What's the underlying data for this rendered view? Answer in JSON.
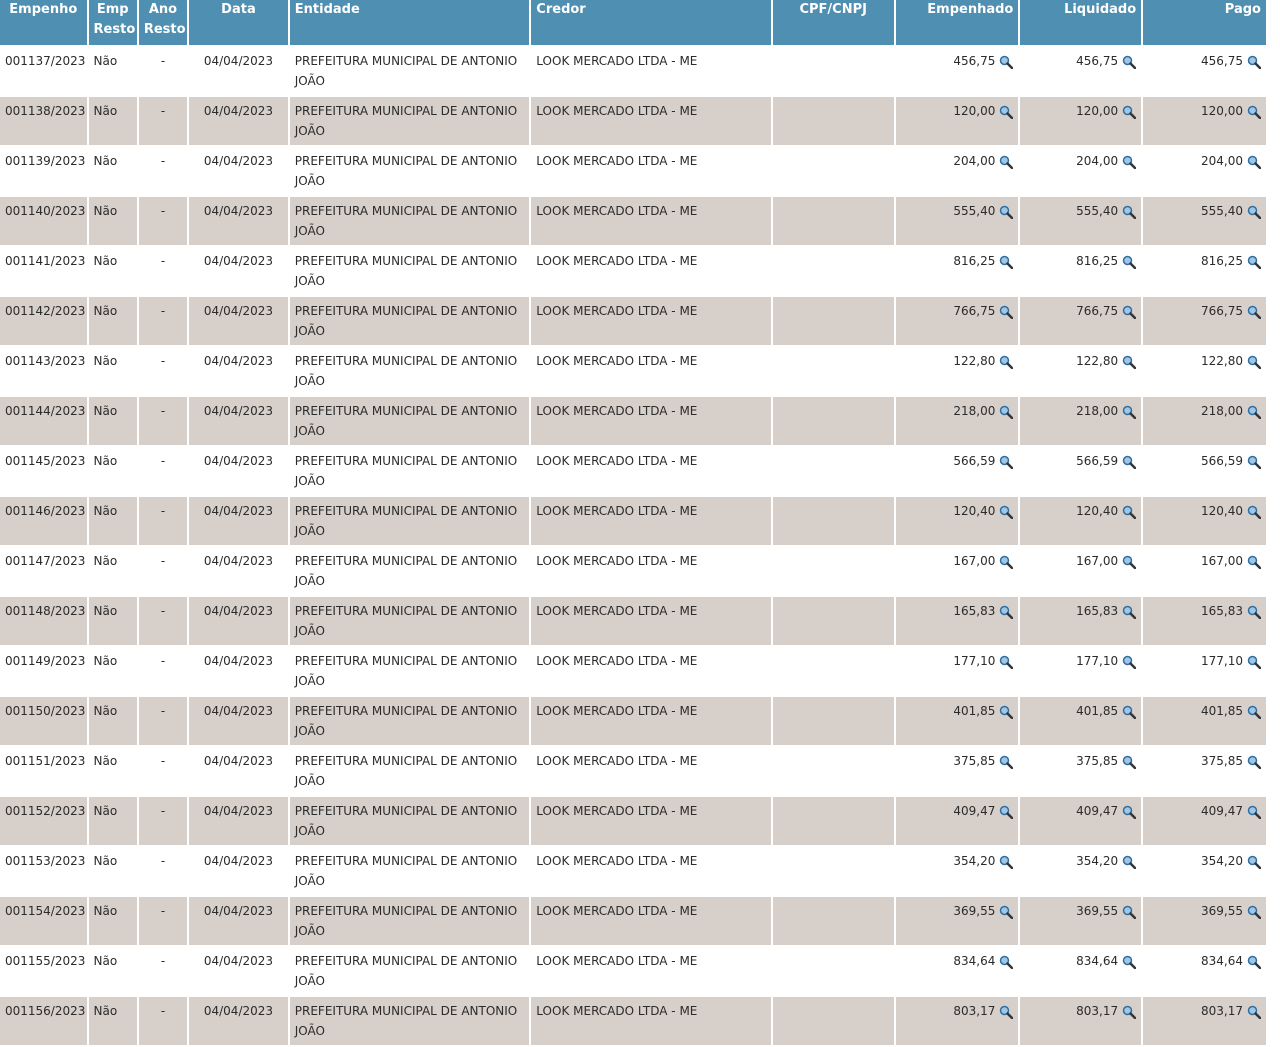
{
  "headers": {
    "empenho": "Empenho",
    "emp_resto": "Emp Resto",
    "ano_resto": "Ano Resto",
    "data": "Data",
    "entidade": "Entidade",
    "credor": "Credor",
    "cpf": "CPF/CNPJ",
    "empenhado": "Empenhado",
    "liquidado": "Liquidado",
    "pago": "Pago"
  },
  "icons": {
    "detail": "magnifier-icon"
  },
  "colors": {
    "header_bg": "#4f8fb2",
    "row_alt": "#d7cfc9"
  },
  "rows": [
    {
      "empenho": "001137/2023",
      "emp_resto": "Não",
      "ano_resto": "-",
      "data": "04/04/2023",
      "entidade": "PREFEITURA MUNICIPAL DE ANTONIO JOÃO",
      "credor": "LOOK MERCADO LTDA - ME",
      "cpf": "",
      "empenhado": "456,75",
      "liquidado": "456,75",
      "pago": "456,75"
    },
    {
      "empenho": "001138/2023",
      "emp_resto": "Não",
      "ano_resto": "-",
      "data": "04/04/2023",
      "entidade": "PREFEITURA MUNICIPAL DE ANTONIO JOÃO",
      "credor": "LOOK MERCADO LTDA - ME",
      "cpf": "",
      "empenhado": "120,00",
      "liquidado": "120,00",
      "pago": "120,00"
    },
    {
      "empenho": "001139/2023",
      "emp_resto": "Não",
      "ano_resto": "-",
      "data": "04/04/2023",
      "entidade": "PREFEITURA MUNICIPAL DE ANTONIO JOÃO",
      "credor": "LOOK MERCADO LTDA - ME",
      "cpf": "",
      "empenhado": "204,00",
      "liquidado": "204,00",
      "pago": "204,00"
    },
    {
      "empenho": "001140/2023",
      "emp_resto": "Não",
      "ano_resto": "-",
      "data": "04/04/2023",
      "entidade": "PREFEITURA MUNICIPAL DE ANTONIO JOÃO",
      "credor": "LOOK MERCADO LTDA - ME",
      "cpf": "",
      "empenhado": "555,40",
      "liquidado": "555,40",
      "pago": "555,40"
    },
    {
      "empenho": "001141/2023",
      "emp_resto": "Não",
      "ano_resto": "-",
      "data": "04/04/2023",
      "entidade": "PREFEITURA MUNICIPAL DE ANTONIO JOÃO",
      "credor": "LOOK MERCADO LTDA - ME",
      "cpf": "",
      "empenhado": "816,25",
      "liquidado": "816,25",
      "pago": "816,25"
    },
    {
      "empenho": "001142/2023",
      "emp_resto": "Não",
      "ano_resto": "-",
      "data": "04/04/2023",
      "entidade": "PREFEITURA MUNICIPAL DE ANTONIO JOÃO",
      "credor": "LOOK MERCADO LTDA - ME",
      "cpf": "",
      "empenhado": "766,75",
      "liquidado": "766,75",
      "pago": "766,75"
    },
    {
      "empenho": "001143/2023",
      "emp_resto": "Não",
      "ano_resto": "-",
      "data": "04/04/2023",
      "entidade": "PREFEITURA MUNICIPAL DE ANTONIO JOÃO",
      "credor": "LOOK MERCADO LTDA - ME",
      "cpf": "",
      "empenhado": "122,80",
      "liquidado": "122,80",
      "pago": "122,80"
    },
    {
      "empenho": "001144/2023",
      "emp_resto": "Não",
      "ano_resto": "-",
      "data": "04/04/2023",
      "entidade": "PREFEITURA MUNICIPAL DE ANTONIO JOÃO",
      "credor": "LOOK MERCADO LTDA - ME",
      "cpf": "",
      "empenhado": "218,00",
      "liquidado": "218,00",
      "pago": "218,00"
    },
    {
      "empenho": "001145/2023",
      "emp_resto": "Não",
      "ano_resto": "-",
      "data": "04/04/2023",
      "entidade": "PREFEITURA MUNICIPAL DE ANTONIO JOÃO",
      "credor": "LOOK MERCADO LTDA - ME",
      "cpf": "",
      "empenhado": "566,59",
      "liquidado": "566,59",
      "pago": "566,59"
    },
    {
      "empenho": "001146/2023",
      "emp_resto": "Não",
      "ano_resto": "-",
      "data": "04/04/2023",
      "entidade": "PREFEITURA MUNICIPAL DE ANTONIO JOÃO",
      "credor": "LOOK MERCADO LTDA - ME",
      "cpf": "",
      "empenhado": "120,40",
      "liquidado": "120,40",
      "pago": "120,40"
    },
    {
      "empenho": "001147/2023",
      "emp_resto": "Não",
      "ano_resto": "-",
      "data": "04/04/2023",
      "entidade": "PREFEITURA MUNICIPAL DE ANTONIO JOÃO",
      "credor": "LOOK MERCADO LTDA - ME",
      "cpf": "",
      "empenhado": "167,00",
      "liquidado": "167,00",
      "pago": "167,00"
    },
    {
      "empenho": "001148/2023",
      "emp_resto": "Não",
      "ano_resto": "-",
      "data": "04/04/2023",
      "entidade": "PREFEITURA MUNICIPAL DE ANTONIO JOÃO",
      "credor": "LOOK MERCADO LTDA - ME",
      "cpf": "",
      "empenhado": "165,83",
      "liquidado": "165,83",
      "pago": "165,83"
    },
    {
      "empenho": "001149/2023",
      "emp_resto": "Não",
      "ano_resto": "-",
      "data": "04/04/2023",
      "entidade": "PREFEITURA MUNICIPAL DE ANTONIO JOÃO",
      "credor": "LOOK MERCADO LTDA - ME",
      "cpf": "",
      "empenhado": "177,10",
      "liquidado": "177,10",
      "pago": "177,10"
    },
    {
      "empenho": "001150/2023",
      "emp_resto": "Não",
      "ano_resto": "-",
      "data": "04/04/2023",
      "entidade": "PREFEITURA MUNICIPAL DE ANTONIO JOÃO",
      "credor": "LOOK MERCADO LTDA - ME",
      "cpf": "",
      "empenhado": "401,85",
      "liquidado": "401,85",
      "pago": "401,85"
    },
    {
      "empenho": "001151/2023",
      "emp_resto": "Não",
      "ano_resto": "-",
      "data": "04/04/2023",
      "entidade": "PREFEITURA MUNICIPAL DE ANTONIO JOÃO",
      "credor": "LOOK MERCADO LTDA - ME",
      "cpf": "",
      "empenhado": "375,85",
      "liquidado": "375,85",
      "pago": "375,85"
    },
    {
      "empenho": "001152/2023",
      "emp_resto": "Não",
      "ano_resto": "-",
      "data": "04/04/2023",
      "entidade": "PREFEITURA MUNICIPAL DE ANTONIO JOÃO",
      "credor": "LOOK MERCADO LTDA - ME",
      "cpf": "",
      "empenhado": "409,47",
      "liquidado": "409,47",
      "pago": "409,47"
    },
    {
      "empenho": "001153/2023",
      "emp_resto": "Não",
      "ano_resto": "-",
      "data": "04/04/2023",
      "entidade": "PREFEITURA MUNICIPAL DE ANTONIO JOÃO",
      "credor": "LOOK MERCADO LTDA - ME",
      "cpf": "",
      "empenhado": "354,20",
      "liquidado": "354,20",
      "pago": "354,20"
    },
    {
      "empenho": "001154/2023",
      "emp_resto": "Não",
      "ano_resto": "-",
      "data": "04/04/2023",
      "entidade": "PREFEITURA MUNICIPAL DE ANTONIO JOÃO",
      "credor": "LOOK MERCADO LTDA - ME",
      "cpf": "",
      "empenhado": "369,55",
      "liquidado": "369,55",
      "pago": "369,55"
    },
    {
      "empenho": "001155/2023",
      "emp_resto": "Não",
      "ano_resto": "-",
      "data": "04/04/2023",
      "entidade": "PREFEITURA MUNICIPAL DE ANTONIO JOÃO",
      "credor": "LOOK MERCADO LTDA - ME",
      "cpf": "",
      "empenhado": "834,64",
      "liquidado": "834,64",
      "pago": "834,64"
    },
    {
      "empenho": "001156/2023",
      "emp_resto": "Não",
      "ano_resto": "-",
      "data": "04/04/2023",
      "entidade": "PREFEITURA MUNICIPAL DE ANTONIO JOÃO",
      "credor": "LOOK MERCADO LTDA - ME",
      "cpf": "",
      "empenhado": "803,17",
      "liquidado": "803,17",
      "pago": "803,17"
    }
  ]
}
